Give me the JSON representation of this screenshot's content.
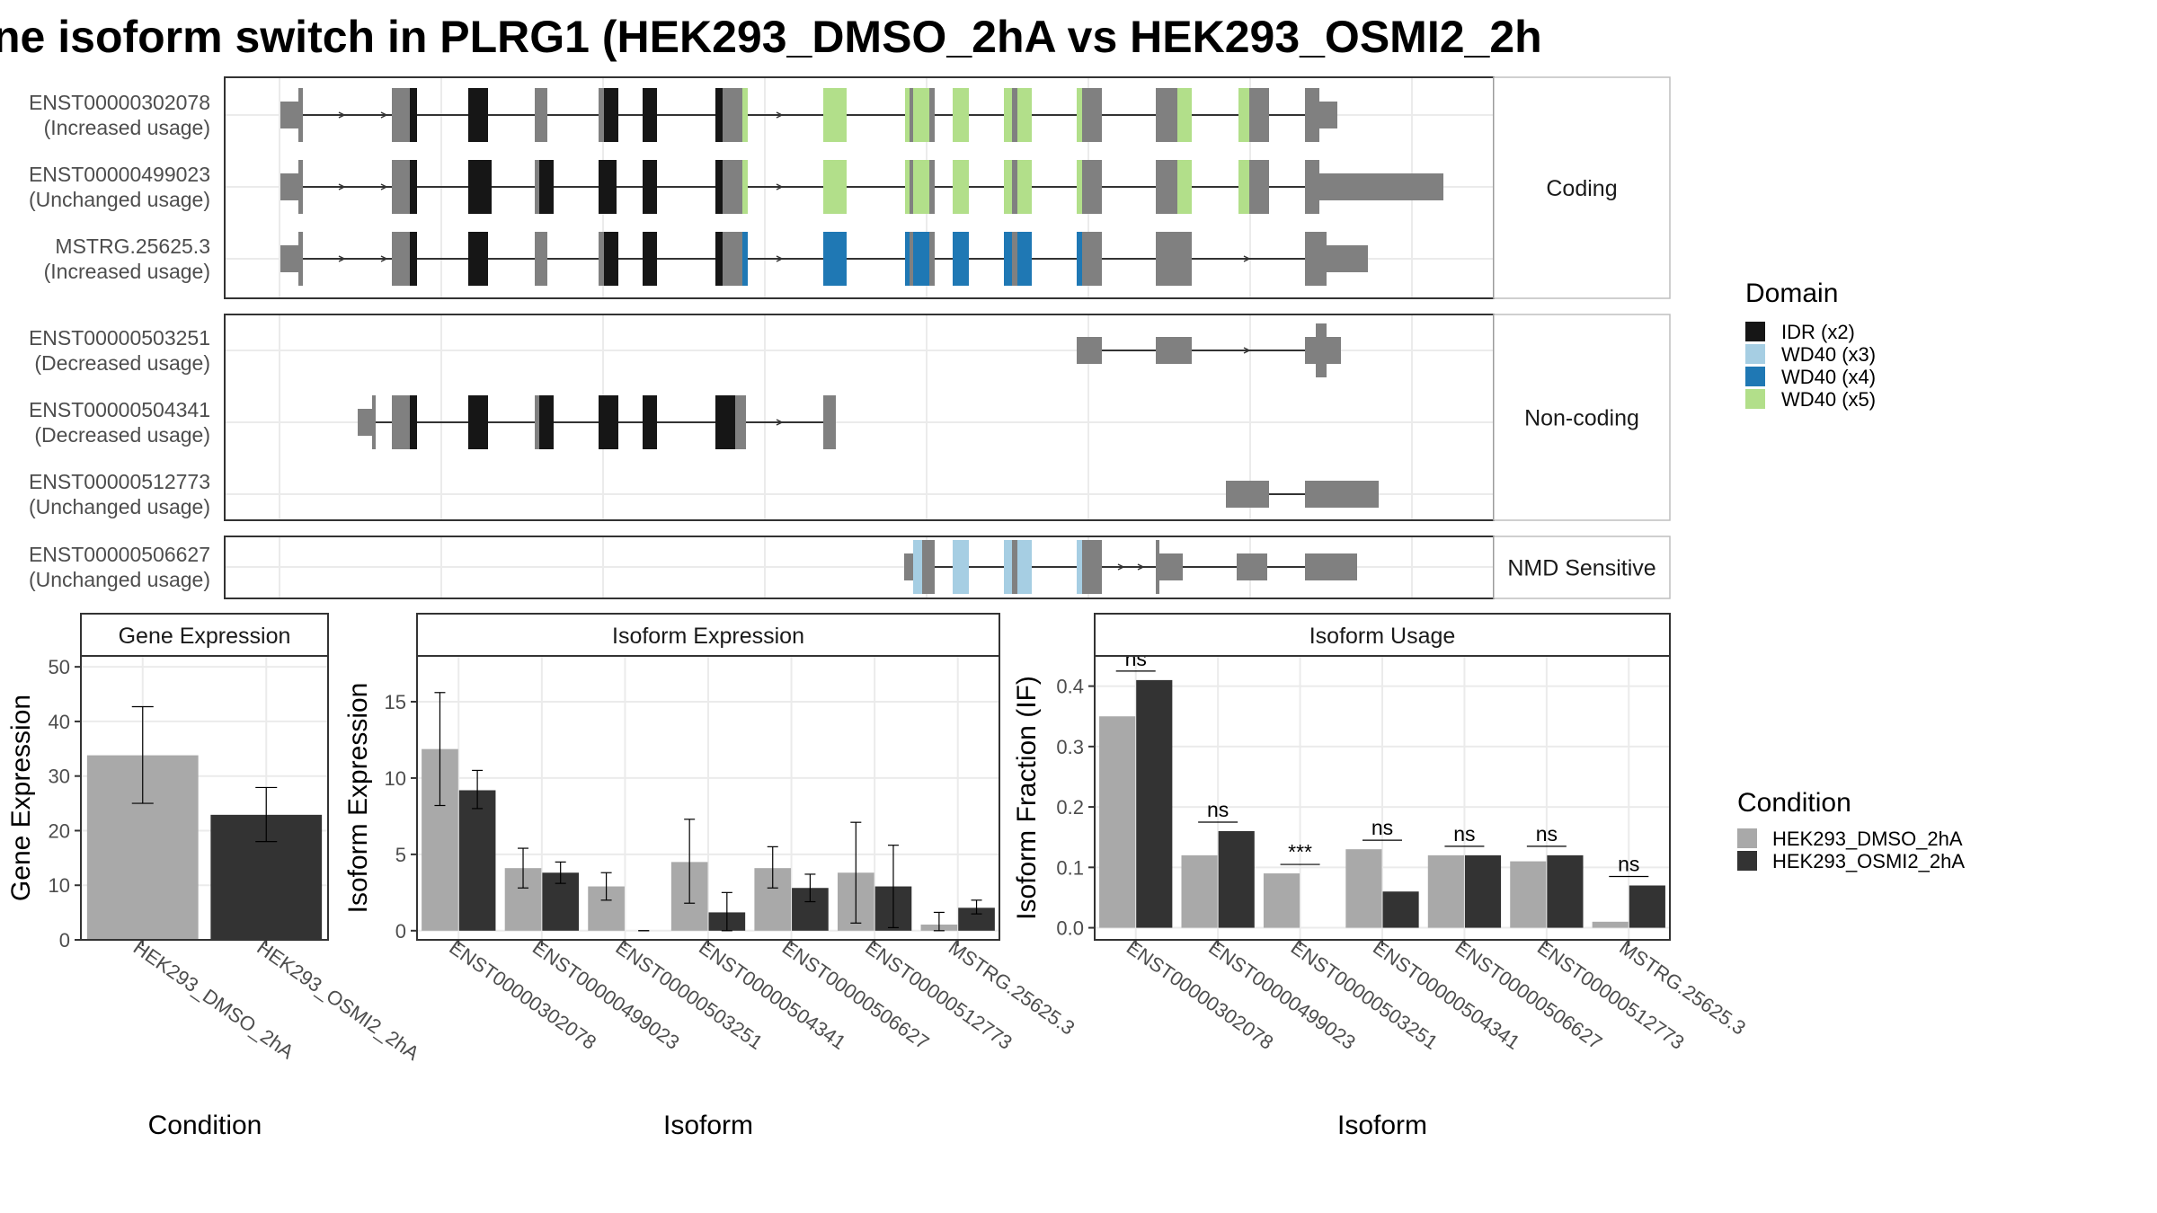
{
  "title": "ne isoform switch in PLRG1 (HEK293_DMSO_2hA vs HEK293_OSMI2_2h",
  "colors": {
    "exon": "#808080",
    "IDR": "#161616",
    "WD40_x3": "#a6cee3",
    "WD40_x4": "#1f78b4",
    "WD40_x5": "#b2df8a",
    "dmso": "#a9a9a9",
    "osmi": "#333333",
    "panel_border": "#333333",
    "strip_border": "#bfbfbf",
    "grid": "#ebebeb"
  },
  "structure": {
    "groups": [
      {
        "label": "Coding",
        "transcripts": [
          {
            "id": "ENST00000302078",
            "status": "(Increased usage)"
          },
          {
            "id": "ENST00000499023",
            "status": "(Unchanged usage)"
          },
          {
            "id": "MSTRG.25625.3",
            "status": "(Increased usage)"
          }
        ]
      },
      {
        "label": "Non-coding",
        "transcripts": [
          {
            "id": "ENST00000503251",
            "status": "(Decreased usage)"
          },
          {
            "id": "ENST00000504341",
            "status": "(Decreased usage)"
          },
          {
            "id": "ENST00000512773",
            "status": "(Unchanged usage)"
          }
        ]
      },
      {
        "label": "NMD Sensitive",
        "transcripts": [
          {
            "id": "ENST00000506627",
            "status": "(Unchanged usage)"
          }
        ]
      }
    ]
  },
  "domain_legend": {
    "title": "Domain",
    "items": [
      {
        "label": "IDR (x2)",
        "color_key": "IDR"
      },
      {
        "label": "WD40 (x3)",
        "color_key": "WD40_x3"
      },
      {
        "label": "WD40 (x4)",
        "color_key": "WD40_x4"
      },
      {
        "label": "WD40 (x5)",
        "color_key": "WD40_x5"
      }
    ]
  },
  "condition_legend": {
    "title": "Condition",
    "items": [
      {
        "label": "HEK293_DMSO_2hA",
        "color_key": "dmso"
      },
      {
        "label": "HEK293_OSMI2_2hA",
        "color_key": "osmi"
      }
    ]
  },
  "chart_data": [
    {
      "type": "bar",
      "panel": "gene",
      "strip": "Gene Expression",
      "xlabel": "Condition",
      "ylabel": "Gene Expression",
      "ylim": [
        0,
        52
      ],
      "yticks": [
        0,
        10,
        20,
        30,
        40,
        50
      ],
      "categories": [
        "HEK293_DMSO_2hA",
        "HEK293_OSMI2_2hA"
      ],
      "values": [
        33.8,
        22.9
      ],
      "err_low": [
        25.0,
        18.0
      ],
      "err_high": [
        42.7,
        27.9
      ]
    },
    {
      "type": "bar",
      "panel": "isoexp",
      "strip": "Isoform Expression",
      "xlabel": "Isoform",
      "ylabel": "Isoform Expression",
      "ylim": [
        -0.6,
        18
      ],
      "yticks": [
        0,
        5,
        10,
        15
      ],
      "categories": [
        "ENST00000302078",
        "ENST00000499023",
        "ENST00000503251",
        "ENST00000504341",
        "ENST00000506627",
        "ENST00000512773",
        "MSTRG.25625.3"
      ],
      "series": [
        {
          "name": "HEK293_DMSO_2hA",
          "values": [
            11.9,
            4.1,
            2.9,
            4.5,
            4.1,
            3.8,
            0.4
          ],
          "err_low": [
            8.2,
            2.8,
            2.0,
            1.8,
            2.8,
            0.5,
            0.0
          ],
          "err_high": [
            15.6,
            5.4,
            3.8,
            7.3,
            5.5,
            7.1,
            1.2
          ]
        },
        {
          "name": "HEK293_OSMI2_2hA",
          "values": [
            9.2,
            3.8,
            0.0,
            1.2,
            2.8,
            2.9,
            1.5
          ],
          "err_low": [
            8.0,
            3.1,
            0.0,
            0.0,
            1.9,
            0.2,
            1.1
          ],
          "err_high": [
            10.5,
            4.5,
            0.0,
            2.5,
            3.7,
            5.6,
            2.0
          ]
        }
      ]
    },
    {
      "type": "bar",
      "panel": "isousage",
      "strip": "Isoform Usage",
      "xlabel": "Isoform",
      "ylabel": "Isoform Fraction (IF)",
      "ylim": [
        -0.02,
        0.45
      ],
      "yticks": [
        "0.0",
        "0.1",
        "0.2",
        "0.3",
        "0.4"
      ],
      "categories": [
        "ENST00000302078",
        "ENST00000499023",
        "ENST00000503251",
        "ENST00000504341",
        "ENST00000506627",
        "ENST00000512773",
        "MSTRG.25625.3"
      ],
      "series": [
        {
          "name": "HEK293_DMSO_2hA",
          "values": [
            0.35,
            0.12,
            0.09,
            0.13,
            0.12,
            0.11,
            0.01
          ]
        },
        {
          "name": "HEK293_OSMI2_2hA",
          "values": [
            0.41,
            0.16,
            0.0,
            0.06,
            0.12,
            0.12,
            0.07
          ]
        }
      ],
      "significance": [
        "ns",
        "ns",
        "***",
        "ns",
        "ns",
        "ns",
        "ns"
      ]
    }
  ]
}
